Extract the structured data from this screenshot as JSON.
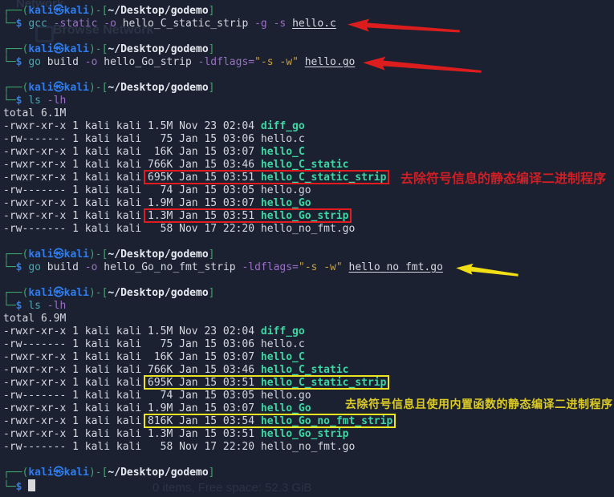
{
  "terminal": {
    "title": "kali terminal session",
    "palette": {
      "background": "#1b2130",
      "foreground": "#d4d8e0",
      "prompt_frame_green": "#3fa46b",
      "prompt_user_blue": "#2e7df0",
      "command_cyan": "#45a9b4",
      "option_purple": "#9a6fc6",
      "string_yellow": "#c9a03c",
      "executable_green": "#3ed6a3",
      "highlight_red": "#e11b1e",
      "highlight_yellow": "#ece421",
      "cursor": "#d8d8d8"
    },
    "lines": [
      {
        "name": "prompt-line",
        "segs": [
          {
            "t": "┌──(",
            "c": "frame"
          },
          {
            "t": "kali㉿kali",
            "c": "user"
          },
          {
            "t": ")-[",
            "c": "frame"
          },
          {
            "t": "~/Desktop/godemo",
            "c": "path"
          },
          {
            "t": "]",
            "c": "frame"
          }
        ]
      },
      {
        "name": "command-line",
        "segs": [
          {
            "t": "└─",
            "c": "frame"
          },
          {
            "t": "$",
            "c": "dollar"
          },
          {
            "t": " ",
            "c": "fg"
          },
          {
            "t": "gcc",
            "c": "cmd"
          },
          {
            "t": " ",
            "c": "fg"
          },
          {
            "t": "-static",
            "c": "opt"
          },
          {
            "t": " ",
            "c": "fg"
          },
          {
            "t": "-o",
            "c": "opt"
          },
          {
            "t": " hello_C_static_strip ",
            "c": "fg"
          },
          {
            "t": "-g",
            "c": "opt"
          },
          {
            "t": " ",
            "c": "fg"
          },
          {
            "t": "-s",
            "c": "opt"
          },
          {
            "t": " ",
            "c": "fg"
          },
          {
            "t": "hello.c",
            "c": "file"
          }
        ]
      },
      {
        "name": "blank-line",
        "segs": []
      },
      {
        "name": "prompt-line",
        "segs": [
          {
            "t": "┌──(",
            "c": "frame"
          },
          {
            "t": "kali㉿kali",
            "c": "user"
          },
          {
            "t": ")-[",
            "c": "frame"
          },
          {
            "t": "~/Desktop/godemo",
            "c": "path"
          },
          {
            "t": "]",
            "c": "frame"
          }
        ]
      },
      {
        "name": "command-line",
        "segs": [
          {
            "t": "└─",
            "c": "frame"
          },
          {
            "t": "$",
            "c": "dollar"
          },
          {
            "t": " ",
            "c": "fg"
          },
          {
            "t": "go",
            "c": "cmd"
          },
          {
            "t": " build ",
            "c": "fg"
          },
          {
            "t": "-o",
            "c": "opt"
          },
          {
            "t": " hello_Go_strip ",
            "c": "fg"
          },
          {
            "t": "-ldflags=",
            "c": "opt"
          },
          {
            "t": "\"-s -w\"",
            "c": "str"
          },
          {
            "t": " ",
            "c": "fg"
          },
          {
            "t": "hello.go",
            "c": "file"
          }
        ]
      },
      {
        "name": "blank-line",
        "segs": []
      },
      {
        "name": "prompt-line",
        "segs": [
          {
            "t": "┌──(",
            "c": "frame"
          },
          {
            "t": "kali㉿kali",
            "c": "user"
          },
          {
            "t": ")-[",
            "c": "frame"
          },
          {
            "t": "~/Desktop/godemo",
            "c": "path"
          },
          {
            "t": "]",
            "c": "frame"
          }
        ]
      },
      {
        "name": "command-line",
        "segs": [
          {
            "t": "└─",
            "c": "frame"
          },
          {
            "t": "$",
            "c": "dollar"
          },
          {
            "t": " ",
            "c": "fg"
          },
          {
            "t": "ls",
            "c": "cmd"
          },
          {
            "t": " ",
            "c": "fg"
          },
          {
            "t": "-lh",
            "c": "opt"
          }
        ]
      },
      {
        "name": "output-line",
        "segs": [
          {
            "t": "total 6.1M",
            "c": "fg"
          }
        ]
      },
      {
        "name": "file-row",
        "segs": [
          {
            "t": "-rwxr-xr-x 1 kali kali 1.5M Nov 23 02:04 ",
            "c": "fg"
          },
          {
            "t": "diff_go",
            "c": "exec"
          }
        ]
      },
      {
        "name": "file-row",
        "segs": [
          {
            "t": "-rw------- 1 kali kali   75 Jan 15 03:06 ",
            "c": "fg"
          },
          {
            "t": "hello.c",
            "c": "fg"
          }
        ]
      },
      {
        "name": "file-row",
        "segs": [
          {
            "t": "-rwxr-xr-x 1 kali kali  16K Jan 15 03:07 ",
            "c": "fg"
          },
          {
            "t": "hello_C",
            "c": "exec"
          }
        ]
      },
      {
        "name": "file-row",
        "segs": [
          {
            "t": "-rwxr-xr-x 1 kali kali 766K Jan 15 03:46 ",
            "c": "fg"
          },
          {
            "t": "hello_C_static",
            "c": "exec"
          }
        ]
      },
      {
        "name": "file-row",
        "segs": [
          {
            "t": "-rwxr-xr-x 1 kali kali ",
            "c": "fg"
          },
          {
            "c": "box-red",
            "segs": [
              {
                "t": "695K Jan 15 03:51 ",
                "c": "fg"
              },
              {
                "t": "hello_C_static_strip",
                "c": "exec"
              }
            ]
          }
        ]
      },
      {
        "name": "file-row",
        "segs": [
          {
            "t": "-rw------- 1 kali kali   74 Jan 15 03:05 ",
            "c": "fg"
          },
          {
            "t": "hello.go",
            "c": "fg"
          }
        ]
      },
      {
        "name": "file-row",
        "segs": [
          {
            "t": "-rwxr-xr-x 1 kali kali 1.9M Jan 15 03:07 ",
            "c": "fg"
          },
          {
            "t": "hello_Go",
            "c": "exec"
          }
        ]
      },
      {
        "name": "file-row",
        "segs": [
          {
            "t": "-rwxr-xr-x 1 kali kali ",
            "c": "fg"
          },
          {
            "c": "box-red",
            "segs": [
              {
                "t": "1.3M Jan 15 03:51 ",
                "c": "fg"
              },
              {
                "t": "hello_Go_strip",
                "c": "exec"
              }
            ]
          }
        ]
      },
      {
        "name": "file-row",
        "segs": [
          {
            "t": "-rw------- 1 kali kali   58 Nov 17 22:20 ",
            "c": "fg"
          },
          {
            "t": "hello_no_fmt.go",
            "c": "fg"
          }
        ]
      },
      {
        "name": "blank-line",
        "segs": []
      },
      {
        "name": "prompt-line",
        "segs": [
          {
            "t": "┌──(",
            "c": "frame"
          },
          {
            "t": "kali㉿kali",
            "c": "user"
          },
          {
            "t": ")-[",
            "c": "frame"
          },
          {
            "t": "~/Desktop/godemo",
            "c": "path"
          },
          {
            "t": "]",
            "c": "frame"
          }
        ]
      },
      {
        "name": "command-line",
        "segs": [
          {
            "t": "└─",
            "c": "frame"
          },
          {
            "t": "$",
            "c": "dollar"
          },
          {
            "t": " ",
            "c": "fg"
          },
          {
            "t": "go",
            "c": "cmd"
          },
          {
            "t": " build ",
            "c": "fg"
          },
          {
            "t": "-o",
            "c": "opt"
          },
          {
            "t": " hello_Go_no_fmt_strip ",
            "c": "fg"
          },
          {
            "t": "-ldflags=",
            "c": "opt"
          },
          {
            "t": "\"-s -w\"",
            "c": "str"
          },
          {
            "t": " ",
            "c": "fg"
          },
          {
            "t": "hello_no_fmt.go",
            "c": "file"
          }
        ]
      },
      {
        "name": "blank-line",
        "segs": []
      },
      {
        "name": "prompt-line",
        "segs": [
          {
            "t": "┌──(",
            "c": "frame"
          },
          {
            "t": "kali㉿kali",
            "c": "user"
          },
          {
            "t": ")-[",
            "c": "frame"
          },
          {
            "t": "~/Desktop/godemo",
            "c": "path"
          },
          {
            "t": "]",
            "c": "frame"
          }
        ]
      },
      {
        "name": "command-line",
        "segs": [
          {
            "t": "└─",
            "c": "frame"
          },
          {
            "t": "$",
            "c": "dollar"
          },
          {
            "t": " ",
            "c": "fg"
          },
          {
            "t": "ls",
            "c": "cmd"
          },
          {
            "t": " ",
            "c": "fg"
          },
          {
            "t": "-lh",
            "c": "opt"
          }
        ]
      },
      {
        "name": "output-line",
        "segs": [
          {
            "t": "total 6.9M",
            "c": "fg"
          }
        ]
      },
      {
        "name": "file-row",
        "segs": [
          {
            "t": "-rwxr-xr-x 1 kali kali 1.5M Nov 23 02:04 ",
            "c": "fg"
          },
          {
            "t": "diff_go",
            "c": "exec"
          }
        ]
      },
      {
        "name": "file-row",
        "segs": [
          {
            "t": "-rw------- 1 kali kali   75 Jan 15 03:06 ",
            "c": "fg"
          },
          {
            "t": "hello.c",
            "c": "fg"
          }
        ]
      },
      {
        "name": "file-row",
        "segs": [
          {
            "t": "-rwxr-xr-x 1 kali kali  16K Jan 15 03:07 ",
            "c": "fg"
          },
          {
            "t": "hello_C",
            "c": "exec"
          }
        ]
      },
      {
        "name": "file-row",
        "segs": [
          {
            "t": "-rwxr-xr-x 1 kali kali 766K Jan 15 03:46 ",
            "c": "fg"
          },
          {
            "t": "hello_C_static",
            "c": "exec"
          }
        ]
      },
      {
        "name": "file-row",
        "segs": [
          {
            "t": "-rwxr-xr-x 1 kali kali ",
            "c": "fg"
          },
          {
            "c": "box-yellow",
            "segs": [
              {
                "t": "695K Jan 15 03:51 ",
                "c": "fg"
              },
              {
                "t": "hello_C_static_strip",
                "c": "exec"
              }
            ]
          }
        ]
      },
      {
        "name": "file-row",
        "segs": [
          {
            "t": "-rw------- 1 kali kali   74 Jan 15 03:05 ",
            "c": "fg"
          },
          {
            "t": "hello.go",
            "c": "fg"
          }
        ]
      },
      {
        "name": "file-row",
        "segs": [
          {
            "t": "-rwxr-xr-x 1 kali kali 1.9M Jan 15 03:07 ",
            "c": "fg"
          },
          {
            "t": "hello_Go",
            "c": "exec"
          }
        ]
      },
      {
        "name": "file-row",
        "segs": [
          {
            "t": "-rwxr-xr-x 1 kali kali ",
            "c": "fg"
          },
          {
            "c": "box-yellow",
            "segs": [
              {
                "t": "816K Jan 15 03:54 ",
                "c": "fg"
              },
              {
                "t": "hello_Go_no_fmt_strip",
                "c": "exec"
              }
            ]
          }
        ]
      },
      {
        "name": "file-row",
        "segs": [
          {
            "t": "-rwxr-xr-x 1 kali kali 1.3M Jan 15 03:51 ",
            "c": "fg"
          },
          {
            "t": "hello_Go_strip",
            "c": "exec"
          }
        ]
      },
      {
        "name": "file-row",
        "segs": [
          {
            "t": "-rw------- 1 kali kali   58 Nov 17 22:20 ",
            "c": "fg"
          },
          {
            "t": "hello_no_fmt.go",
            "c": "fg"
          }
        ]
      },
      {
        "name": "blank-line",
        "segs": []
      },
      {
        "name": "prompt-line",
        "segs": [
          {
            "t": "┌──(",
            "c": "frame"
          },
          {
            "t": "kali㉿kali",
            "c": "user"
          },
          {
            "t": ")-[",
            "c": "frame"
          },
          {
            "t": "~/Desktop/godemo",
            "c": "path"
          },
          {
            "t": "]",
            "c": "frame"
          }
        ]
      },
      {
        "name": "prompt-input-line",
        "cursor": true,
        "segs": [
          {
            "t": "└─",
            "c": "frame"
          },
          {
            "t": "$",
            "c": "dollar"
          },
          {
            "t": " ",
            "c": "fg"
          }
        ]
      }
    ]
  },
  "annotations": {
    "red_note": "去除符号信息的静态编译二进制程序",
    "yellow_note": "去除符号信息且使用内置函数的静态编译二进制程序",
    "arrow_red_color": "#dc1d1d",
    "arrow_yellow_color": "#f2de14"
  },
  "ghost_window": {
    "network_label": "Network",
    "browse_label": "Browse Network",
    "statusbar": "0 items, Free space: 52.3 GiB"
  }
}
